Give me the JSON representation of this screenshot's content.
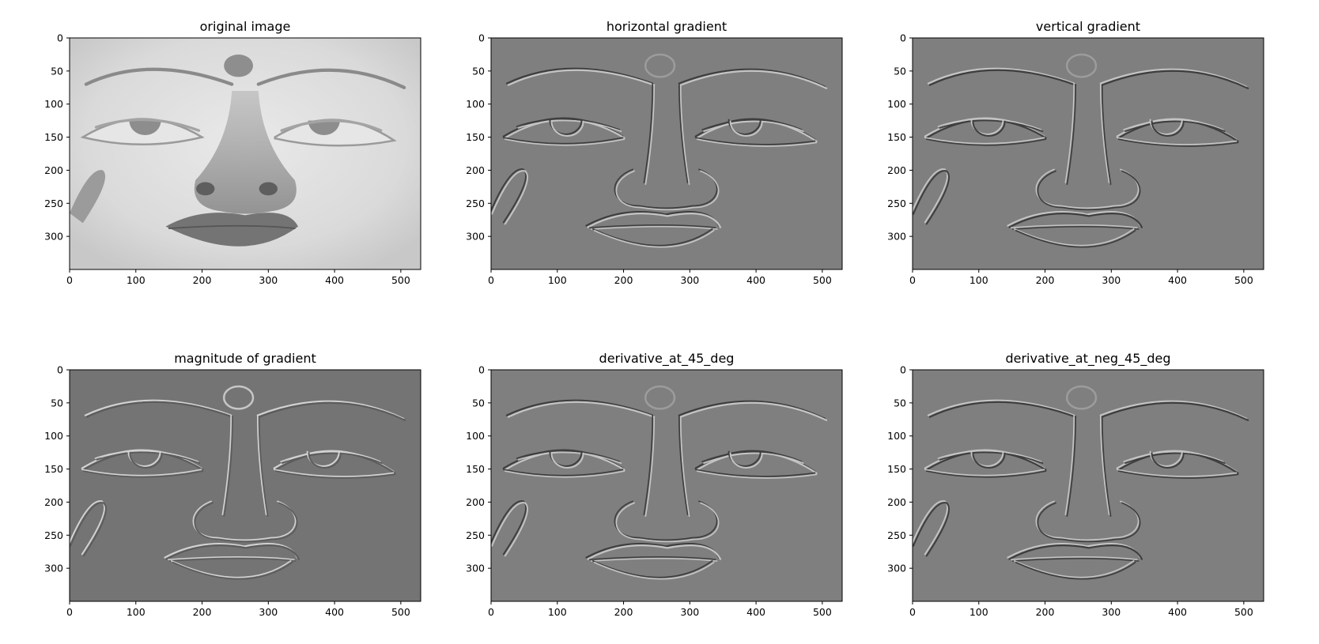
{
  "figure": {
    "subplots": [
      {
        "title": "original image",
        "kind": "original"
      },
      {
        "title": "horizontal gradient",
        "kind": "gx"
      },
      {
        "title": "vertical gradient",
        "kind": "gy"
      },
      {
        "title": "magnitude of gradient",
        "kind": "mag"
      },
      {
        "title": "derivative_at_45_deg",
        "kind": "d45"
      },
      {
        "title": "derivative_at_neg_45_deg",
        "kind": "dn45"
      }
    ]
  },
  "chart_data": {
    "type": "heatmap",
    "colormap": "gray",
    "image_extent": {
      "width": 530,
      "height": 350
    },
    "x_ticks": [
      0,
      100,
      200,
      300,
      400,
      500
    ],
    "y_ticks": [
      0,
      50,
      100,
      150,
      200,
      250,
      300
    ],
    "xlim": [
      0,
      530
    ],
    "ylim": [
      350,
      0
    ],
    "grid": false,
    "panels": [
      "original image",
      "horizontal gradient",
      "vertical gradient",
      "magnitude of gradient",
      "derivative_at_45_deg",
      "derivative_at_neg_45_deg"
    ]
  }
}
